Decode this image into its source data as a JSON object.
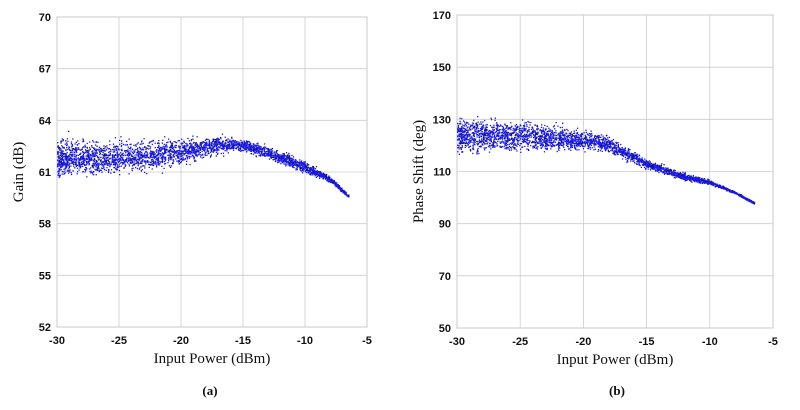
{
  "chart_data": [
    {
      "type": "scatter",
      "caption": "(a)",
      "xlabel": "Input Power (dBm)",
      "ylabel": "Gain (dB)",
      "xlim": [
        -30,
        -5
      ],
      "ylim": [
        52,
        70
      ],
      "xticks": [
        "-30",
        "-25",
        "-20",
        "-15",
        "-10",
        "-5"
      ],
      "yticks": [
        "52",
        "55",
        "58",
        "61",
        "64",
        "67",
        "70"
      ],
      "grid": true,
      "color": "#1a1ae6",
      "trend": {
        "x": [
          -30,
          -25,
          -20,
          -17,
          -15,
          -12,
          -10,
          -8,
          -6.5
        ],
        "center": [
          61.8,
          61.8,
          62.2,
          62.6,
          62.6,
          61.9,
          61.3,
          60.6,
          59.6
        ],
        "lower": [
          60.6,
          60.8,
          61.3,
          62.0,
          62.2,
          61.4,
          60.9,
          60.4,
          59.5
        ],
        "upper": [
          63.3,
          63.0,
          63.1,
          63.2,
          63.0,
          62.3,
          61.7,
          60.8,
          59.7
        ]
      }
    },
    {
      "type": "scatter",
      "caption": "(b)",
      "xlabel": "Input Power (dBm)",
      "ylabel": "Phase Shift (deg)",
      "xlim": [
        -30,
        -5
      ],
      "ylim": [
        50,
        170
      ],
      "xticks": [
        "-30",
        "-25",
        "-20",
        "-15",
        "-10",
        "-5"
      ],
      "yticks": [
        "50",
        "70",
        "90",
        "110",
        "130",
        "150",
        "170"
      ],
      "grid": true,
      "color": "#1a1ae6",
      "trend": {
        "x": [
          -30,
          -25,
          -20,
          -18,
          -15,
          -12,
          -10,
          -8,
          -6.5
        ],
        "center": [
          124,
          124,
          122,
          120.5,
          113,
          108,
          106,
          102,
          98
        ],
        "lower": [
          116,
          117,
          118,
          117,
          111,
          106.5,
          105,
          101.5,
          97.5
        ],
        "upper": [
          131,
          131,
          127,
          124,
          115,
          110,
          107,
          102.5,
          98.5
        ]
      }
    }
  ]
}
